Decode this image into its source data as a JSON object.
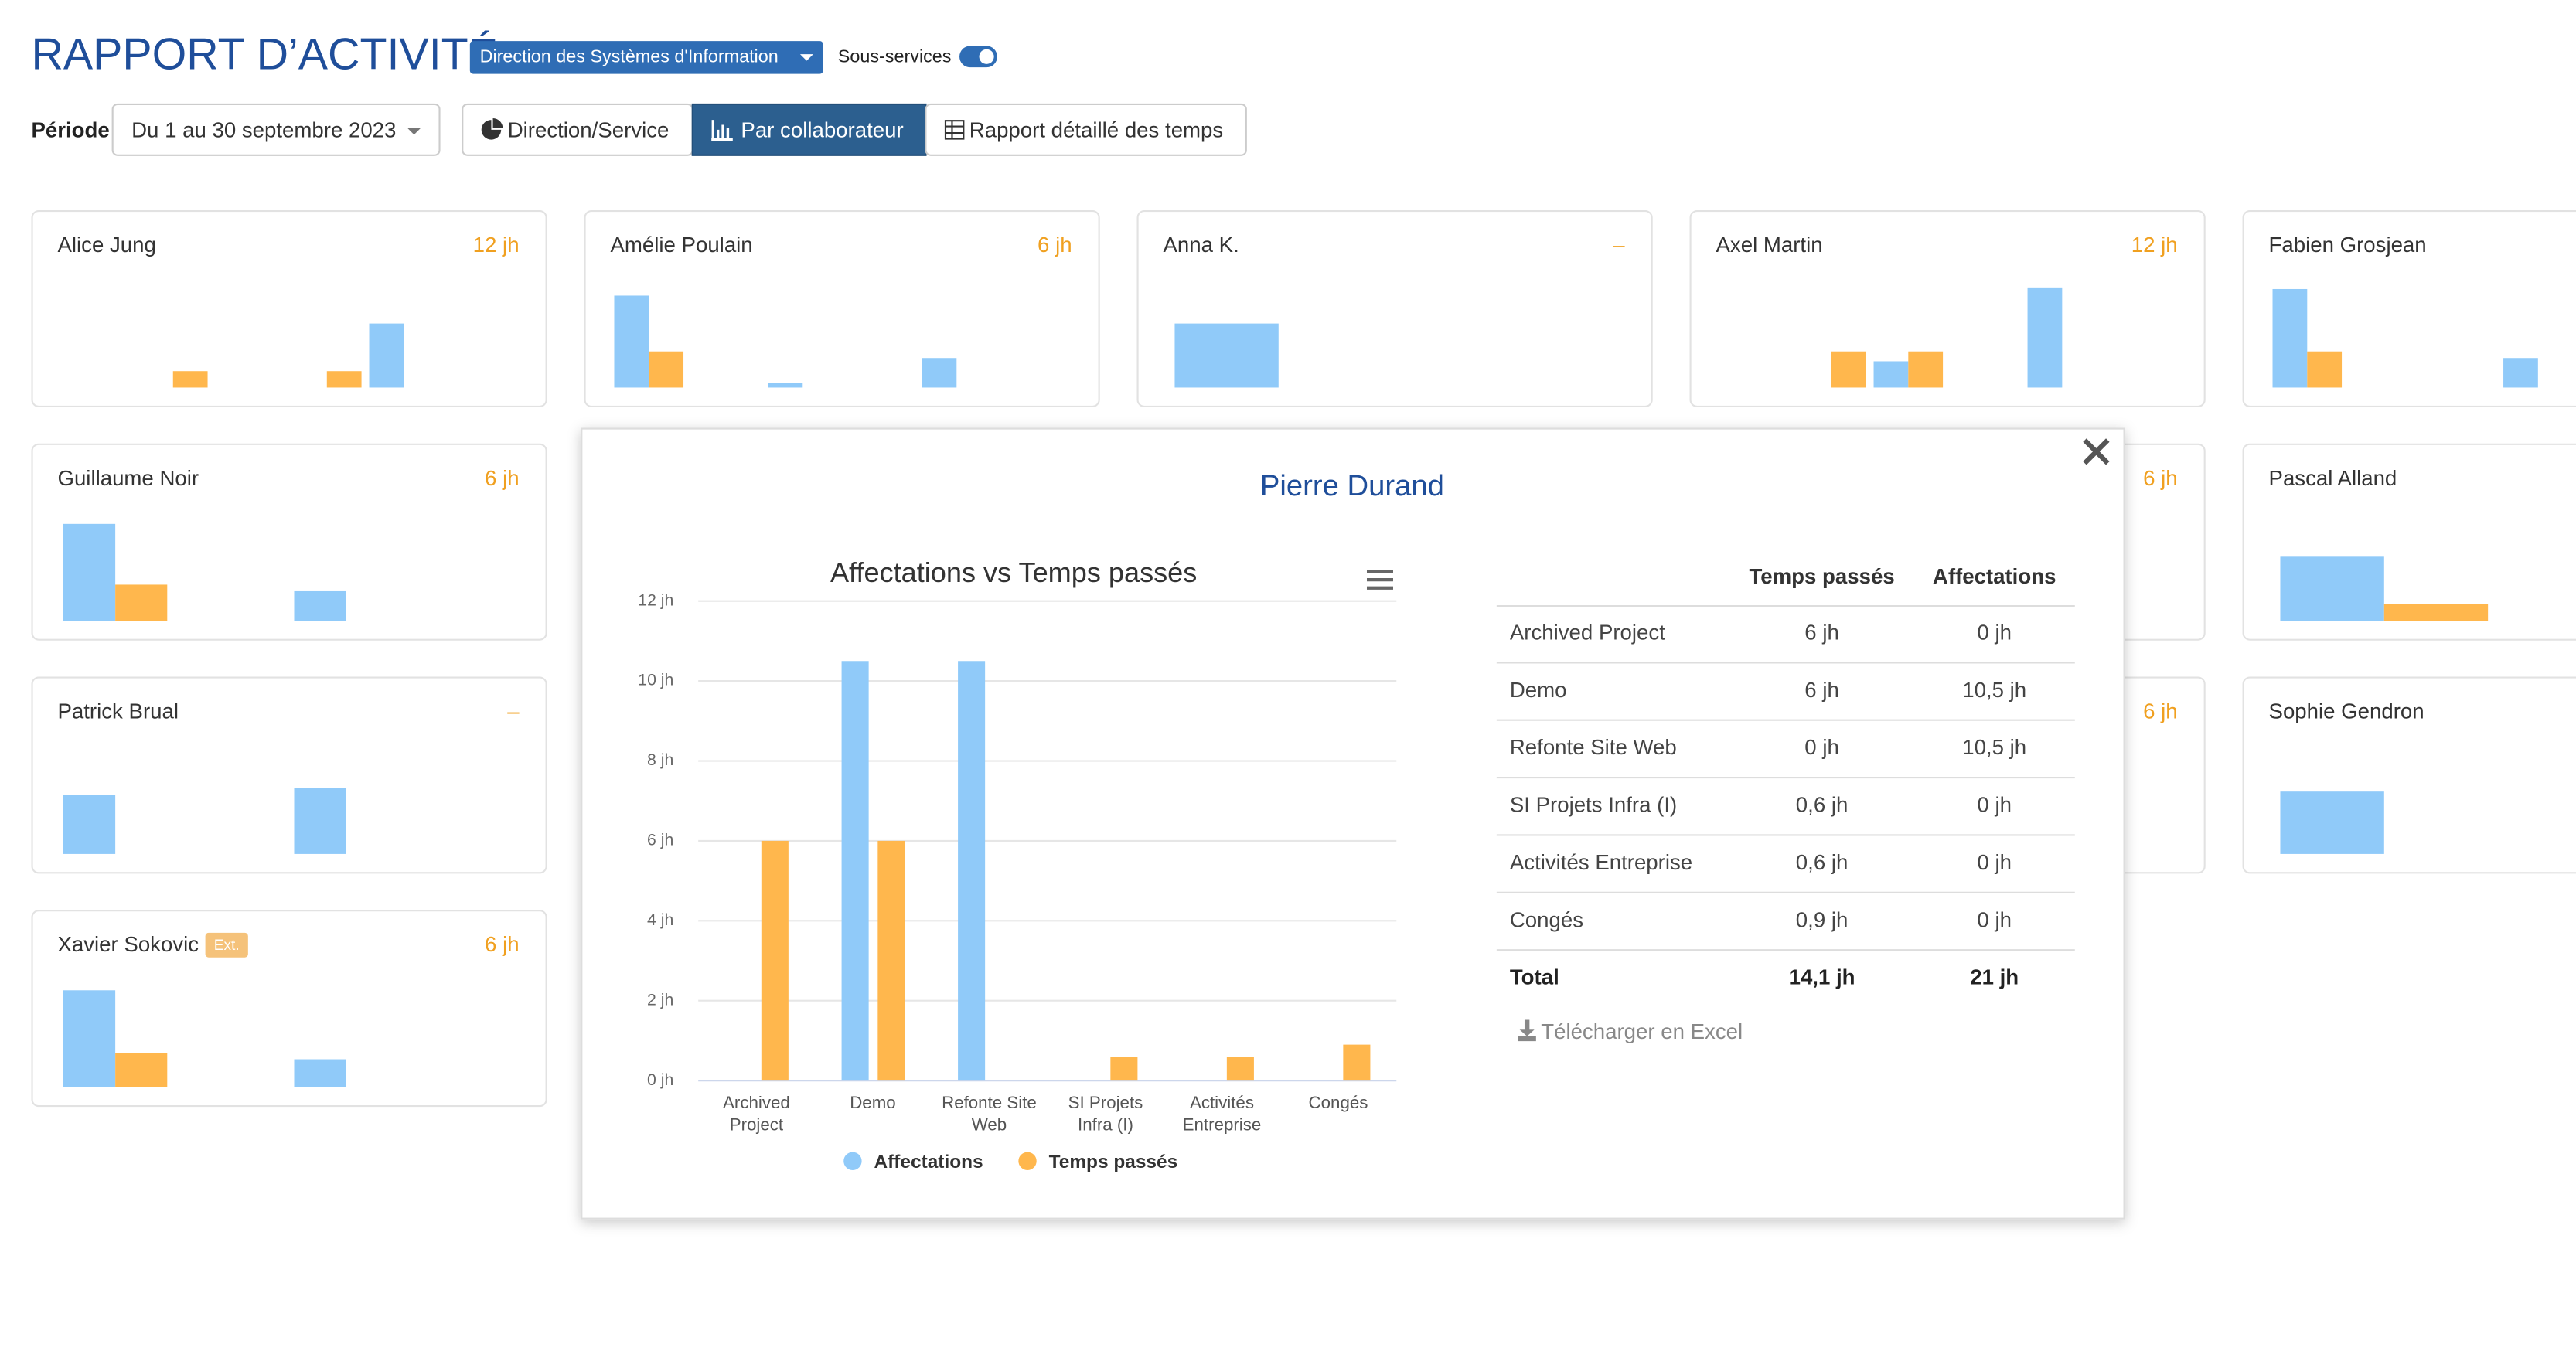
{
  "header": {
    "title": "RAPPORT D’ACTIVITÉ",
    "department": "Direction des Systèmes d'Information",
    "subservices_label": "Sous-services",
    "period_label": "Période",
    "period": "Du 1 au 30 septembre 2023",
    "views": [
      "Direction/Service",
      "Par collaborateur",
      "Rapport détaillé des temps"
    ]
  },
  "mini_ylim": [
    0,
    12
  ],
  "cards": [
    {
      "name": "Alice Jung",
      "total": "12 jh",
      "affectations": [
        0,
        0,
        0,
        0,
        7.8,
        0
      ],
      "temps": [
        0,
        2,
        0,
        2,
        0,
        0
      ]
    },
    {
      "name": "Amélie Poulain",
      "total": "6 jh",
      "affectations": [
        11.2,
        0,
        0.6,
        0,
        3.6,
        0
      ],
      "temps": [
        4.4,
        0,
        0,
        0,
        0,
        0
      ]
    },
    {
      "name": "Anna K.",
      "total": "–",
      "affectations": [
        7.8,
        0
      ],
      "temps": [
        0,
        0
      ]
    },
    {
      "name": "Axel Martin",
      "total": "12 jh",
      "affectations": [
        0,
        0,
        3.2,
        0,
        12.2,
        0
      ],
      "temps": [
        0,
        4.4,
        4.4,
        0,
        0,
        0
      ]
    },
    {
      "name": "Fabien Grosjean",
      "affectations": [
        12,
        0,
        0,
        3.6,
        0,
        0
      ],
      "temps": [
        4.4,
        0,
        0,
        0,
        0,
        0
      ]
    },
    {
      "name": "Guillaume Noir",
      "total": "6 jh",
      "affectations": [
        11.8,
        0,
        3.6,
        0
      ],
      "temps": [
        4.4,
        0,
        0,
        0
      ]
    },
    null,
    null,
    {
      "total": "6 jh"
    },
    {
      "name": "Pascal Alland",
      "affectations": [
        7.8,
        0
      ],
      "temps": [
        2,
        0
      ]
    },
    {
      "name": "Patrick Brual",
      "total": "–",
      "affectations": [
        7.2,
        0,
        8,
        0
      ],
      "temps": [
        0,
        0,
        0,
        0
      ]
    },
    null,
    null,
    {
      "total": "6 jh"
    },
    {
      "name": "Sophie Gendron",
      "affectations": [
        7.6,
        0
      ],
      "temps": [
        0,
        0
      ]
    },
    {
      "name": "Xavier Sokovic",
      "badge": "Ext.",
      "total": "6 jh",
      "affectations": [
        11.8,
        0,
        3.4,
        0
      ],
      "temps": [
        4.2,
        0,
        0,
        0
      ]
    }
  ],
  "popup": {
    "title": "Pierre Durand",
    "chart_data": {
      "type": "bar",
      "title": "Affectations vs Temps passés",
      "categories": [
        "Archived Project",
        "Demo",
        "Refonte Site Web",
        "SI Projets Infra (I)",
        "Activités Entreprise",
        "Congés"
      ],
      "series": [
        {
          "name": "Affectations",
          "color": "#90caf9",
          "values": [
            0,
            10.5,
            10.5,
            0,
            0,
            0
          ]
        },
        {
          "name": "Temps passés",
          "color": "#ffb74d",
          "values": [
            6,
            6,
            0,
            0.6,
            0.6,
            0.9
          ]
        }
      ],
      "ylim": [
        0,
        12
      ],
      "yticks": [
        {
          "value": 0,
          "label": "0 jh"
        },
        {
          "value": 2,
          "label": "2 jh"
        },
        {
          "value": 4,
          "label": "4 jh"
        },
        {
          "value": 6,
          "label": "6 jh"
        },
        {
          "value": 8,
          "label": "8 jh"
        },
        {
          "value": 10,
          "label": "10 jh"
        },
        {
          "value": 12,
          "label": "12 jh"
        }
      ],
      "grid": true,
      "legend": "bottom"
    },
    "table": {
      "columns": [
        "Temps passés",
        "Affectations"
      ],
      "rows": [
        [
          "Archived Project",
          "6 jh",
          "0 jh"
        ],
        [
          "Demo",
          "6 jh",
          "10,5 jh"
        ],
        [
          "Refonte Site Web",
          "0 jh",
          "10,5 jh"
        ],
        [
          "SI Projets Infra (I)",
          "0,6 jh",
          "0 jh"
        ],
        [
          "Activités Entreprise",
          "0,6 jh",
          "0 jh"
        ],
        [
          "Congés",
          "0,9 jh",
          "0 jh"
        ]
      ],
      "total": [
        "Total",
        "14,1 jh",
        "21 jh"
      ]
    },
    "download": "Télécharger en Excel"
  }
}
